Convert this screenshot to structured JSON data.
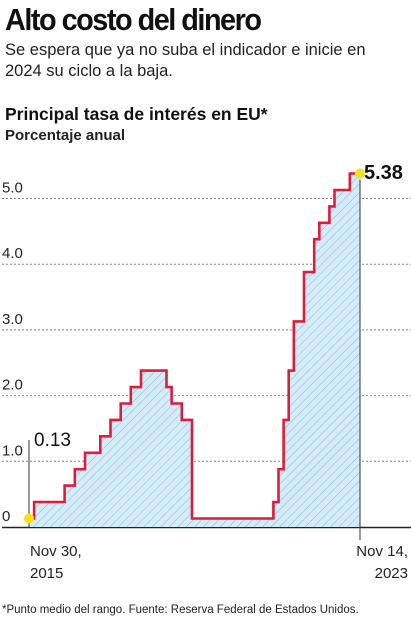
{
  "headline": "Alto costo del dinero",
  "subhead": "Se espera que ya no suba el indicador e inicie en 2024 su ciclo a la baja.",
  "footnote": "*Punto medio del rango. Fuente: Reserva Federal de Estados Unidos.",
  "colors": {
    "line": "#d81f3d",
    "fill": "#d4ebf8",
    "hatch": "#8fb6d4",
    "dot": "#f3e21a",
    "grid": "#888888"
  },
  "chart_data": {
    "type": "line",
    "title": "Principal tasa de interés en EU*",
    "subtitle": "Porcentaje anual",
    "y_ticks": [
      "0",
      "1.0",
      "2.0",
      "3.0",
      "4.0",
      "5.0"
    ],
    "ylim": [
      0,
      5.5
    ],
    "x_labels": [
      {
        "line1": "Nov 30,",
        "line2": "2015"
      },
      {
        "line1": "Nov 14,",
        "line2": "2023"
      }
    ],
    "start_label": "0.13",
    "end_label": "5.38",
    "series": [
      {
        "values": [
          0.13,
          0.38,
          0.38,
          0.38,
          0.38,
          0.38,
          0.38,
          0.63,
          0.63,
          0.88,
          0.88,
          1.13,
          1.13,
          1.13,
          1.38,
          1.38,
          1.63,
          1.63,
          1.88,
          1.88,
          2.13,
          2.13,
          2.38,
          2.38,
          2.38,
          2.38,
          2.38,
          2.13,
          1.88,
          1.88,
          1.63,
          1.63,
          0.13,
          0.13,
          0.13,
          0.13,
          0.13,
          0.13,
          0.13,
          0.13,
          0.13,
          0.13,
          0.13,
          0.13,
          0.13,
          0.13,
          0.13,
          0.13,
          0.38,
          0.88,
          1.63,
          2.38,
          3.13,
          3.13,
          3.88,
          3.88,
          4.38,
          4.63,
          4.63,
          4.88,
          5.13,
          5.13,
          5.13,
          5.38,
          5.38,
          5.38
        ]
      }
    ]
  }
}
